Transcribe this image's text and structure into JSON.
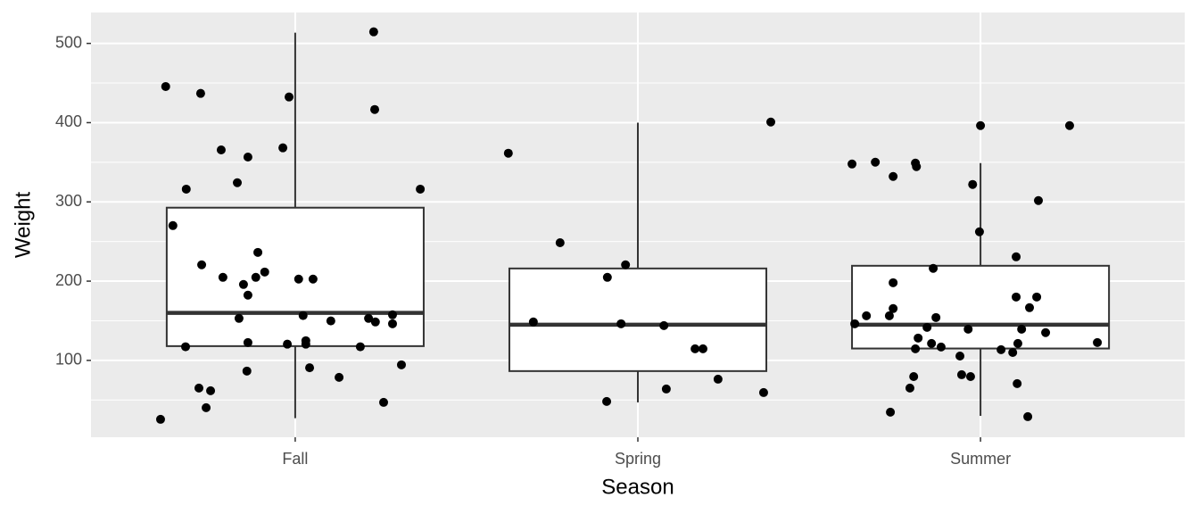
{
  "chart_data": {
    "type": "box",
    "x_label": "Season",
    "y_label": "Weight",
    "categories": [
      "Fall",
      "Spring",
      "Summer"
    ],
    "boxes": {
      "whislo": [
        27,
        47,
        30
      ],
      "q1": [
        118,
        86.5,
        115
      ],
      "median": [
        160,
        145,
        145
      ],
      "q3": [
        292.7,
        216,
        219.4
      ],
      "whishi": [
        513.5,
        400,
        349
      ]
    },
    "points": {
      "x": [
        0.607,
        0.622,
        0.724,
        1.229,
        0.982,
        1.232,
        0.784,
        0.862,
        0.964,
        0.682,
        0.831,
        1.365,
        0.643,
        0.727,
        0.891,
        0.789,
        0.885,
        0.911,
        0.849,
        0.862,
        1.01,
        1.052,
        0.836,
        1.023,
        1.104,
        1.214,
        1.234,
        1.284,
        1.284,
        0.862,
        0.68,
        0.977,
        1.031,
        1.031,
        1.19,
        0.859,
        1.042,
        1.31,
        1.128,
        0.719,
        0.753,
        0.74,
        1.258,
        1.622,
        2.388,
        1.773,
        1.964,
        1.911,
        1.695,
        1.951,
        2.076,
        2.167,
        2.19,
        2.234,
        2.083,
        1.909,
        2.367,
        3.0,
        3.26,
        2.625,
        2.693,
        2.81,
        2.813,
        2.745,
        2.977,
        3.169,
        2.997,
        3.104,
        2.862,
        2.745,
        3.104,
        3.164,
        3.143,
        2.667,
        2.734,
        2.745,
        2.87,
        2.633,
        2.844,
        2.964,
        3.12,
        3.19,
        2.818,
        2.857,
        3.109,
        3.341,
        2.81,
        2.885,
        3.06,
        3.094,
        2.94,
        2.945,
        2.971,
        2.805,
        2.794,
        3.107,
        2.737,
        3.138
      ],
      "y": [
        25.6,
        445.6,
        436.9,
        514.6,
        432.4,
        416.6,
        365.6,
        356.6,
        368.2,
        316.1,
        324.2,
        316.1,
        270.1,
        220.6,
        236.3,
        204.8,
        204.8,
        211.5,
        195.8,
        182.3,
        202.6,
        202.6,
        153,
        156.6,
        149.8,
        153,
        148.5,
        157.5,
        146.2,
        122.5,
        117.2,
        120.5,
        124.8,
        120.5,
        117.2,
        86.5,
        90.7,
        94.4,
        78.6,
        65.1,
        61.7,
        40.3,
        47,
        361.4,
        400.8,
        248.5,
        220.6,
        204.8,
        148.5,
        146.2,
        143.9,
        114.6,
        114.6,
        76.3,
        63.9,
        48.2,
        59.4,
        396.3,
        396.3,
        347.8,
        350.1,
        349,
        344.5,
        332.1,
        322,
        301.7,
        262.3,
        230.7,
        216.1,
        198,
        180,
        180,
        166.5,
        156.3,
        156.3,
        165.4,
        154.1,
        146.2,
        141.7,
        139.4,
        139.4,
        135,
        128.2,
        121.4,
        121.4,
        122.5,
        114.6,
        116.9,
        113.5,
        110,
        105.5,
        81.9,
        79.6,
        79.6,
        65.1,
        70.7,
        34.7,
        29
      ]
    },
    "xlim": [
      0.404,
      3.596
    ],
    "ylim": [
      3,
      539
    ],
    "yticks": [
      100,
      200,
      300,
      400,
      500
    ],
    "yminor": [
      50,
      150,
      250,
      350,
      450
    ],
    "box_width": 0.75,
    "grid": true
  }
}
